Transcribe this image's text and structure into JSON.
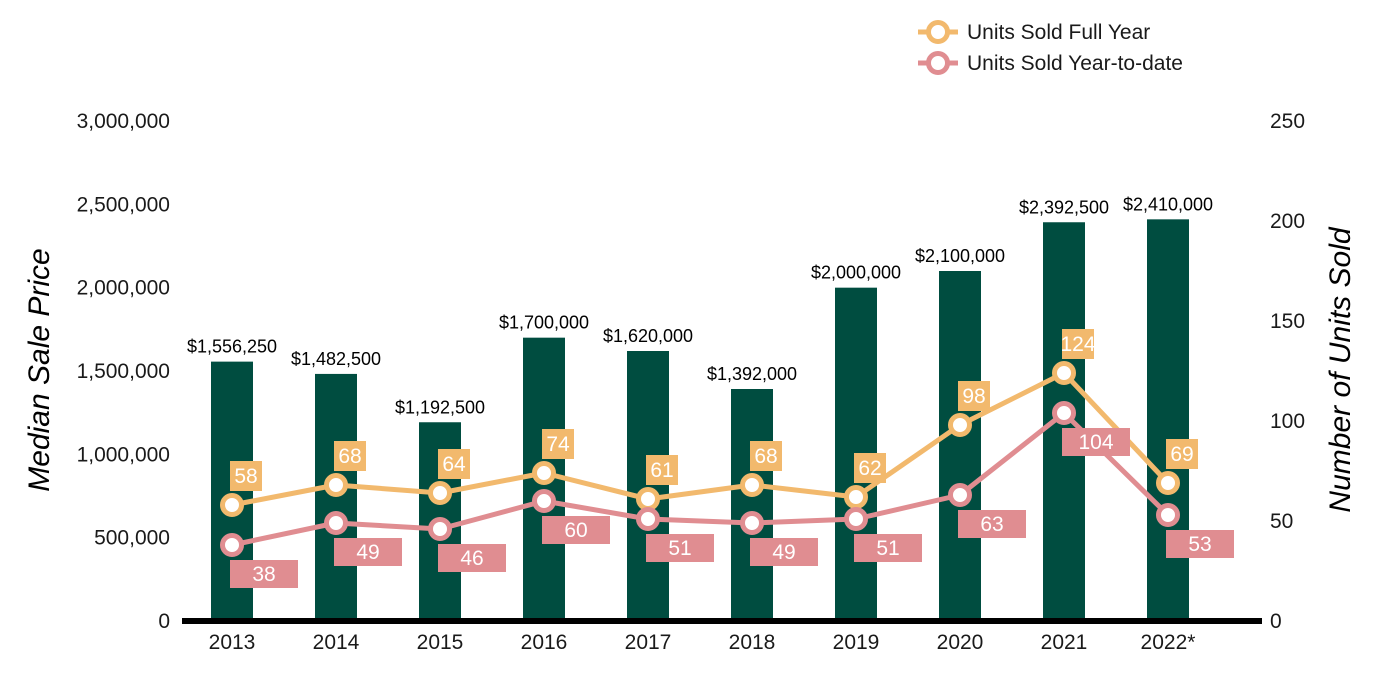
{
  "chart_data": {
    "type": "bar",
    "categories": [
      "2013",
      "2014",
      "2015",
      "2016",
      "2017",
      "2018",
      "2019",
      "2020",
      "2021",
      "2022*"
    ],
    "bar_series": {
      "values": [
        1556250,
        1482500,
        1192500,
        1700000,
        1620000,
        1392000,
        2000000,
        2100000,
        2392500,
        2410000
      ],
      "labels": [
        "$1,556,250",
        "$1,482,500",
        "$1,192,500",
        "$1,700,000",
        "$1,620,000",
        "$1,392,000",
        "$2,000,000",
        "$2,100,000",
        "$2,392,500",
        "$2,410,000"
      ],
      "color": "#004d40"
    },
    "line_series": [
      {
        "name": "Units Sold Full Year",
        "type": "line",
        "values": [
          58,
          68,
          64,
          74,
          61,
          68,
          62,
          98,
          124,
          69
        ],
        "color": "#f2b96d"
      },
      {
        "name": "Units Sold Year-to-date",
        "type": "line",
        "values": [
          38,
          49,
          46,
          60,
          51,
          49,
          51,
          63,
          104,
          53
        ],
        "color": "#e08d91"
      }
    ],
    "ylabel": "Median Sale Price",
    "y2label": "Number of Units Sold",
    "ylim": [
      0,
      3000000
    ],
    "y2lim": [
      0,
      250
    ],
    "yticks": [
      "0",
      "500,000",
      "1,000,000",
      "1,500,000",
      "2,000,000",
      "2,500,000",
      "3,000,000"
    ],
    "y2ticks": [
      "0",
      "50",
      "100",
      "150",
      "200",
      "250"
    ],
    "grid": false,
    "legend_position": "top-right"
  }
}
